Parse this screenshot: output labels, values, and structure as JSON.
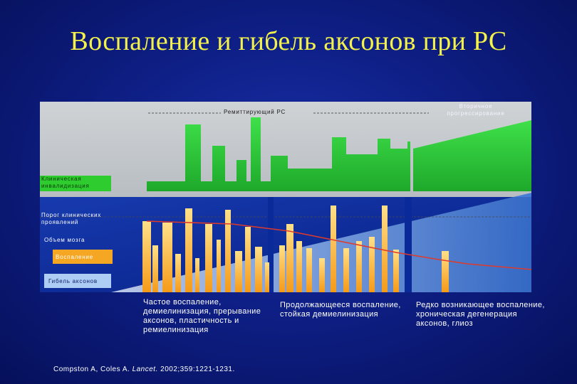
{
  "title": "Воспаление и гибель аксонов при РС",
  "diagram": {
    "phase_relapsing": "Ремиттирующий РС",
    "phase_secondary": "Вторичное прогрессирование",
    "legend": {
      "clinical_disability": "Клиническая инвалидизация",
      "clinical_threshold": "Порог клинических проявлений",
      "brain_volume": "Объем мозга",
      "inflammation": "Воспаление",
      "axonal_loss": "Гибель аксонов"
    },
    "colors": {
      "disability": "#2ecc2e",
      "inflammation": "#f5a623",
      "axonal_loss": "#b7d3f5",
      "brain_volume": "#e03a2a",
      "background": "#0e1f86",
      "title": "#f4f24a"
    }
  },
  "captions": {
    "early": "Частое воспаление, демиелинизация, прерывание аксонов, пластичность и ремиелинизация",
    "middle": "Продолжающееся воспаление, стойкая демиелинизация",
    "late": "Редко возникающее воспаление, хроническая дегенерация аксонов, глиоз"
  },
  "reference": {
    "authors": "Compston A, Coles A.",
    "journal": "Lancet.",
    "details": "2002;359:1221-1231."
  }
}
